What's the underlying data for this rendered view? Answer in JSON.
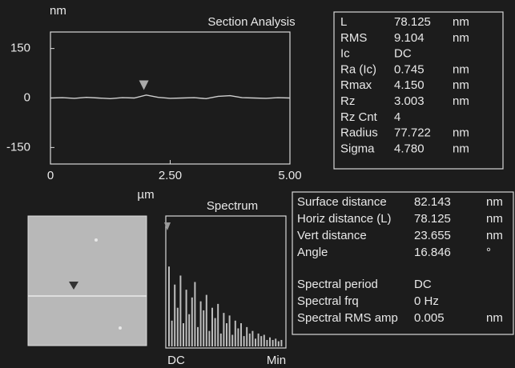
{
  "section": {
    "title": "Section Analysis",
    "y_unit": "nm",
    "x_unit": "µm",
    "xlim": [
      0,
      5
    ],
    "ylim": [
      -200,
      200
    ],
    "xticks": [
      0,
      {
        "value": 2.5,
        "label": "2.50"
      },
      {
        "value": 5,
        "label": "5.00"
      }
    ],
    "yticks": [
      150,
      0,
      -150
    ],
    "x": [
      0,
      0.25,
      0.5,
      0.75,
      1,
      1.25,
      1.5,
      1.75,
      2,
      2.25,
      2.5,
      2.75,
      3,
      3.25,
      3.5,
      3.75,
      4,
      4.25,
      4.5,
      4.75,
      5
    ],
    "y": [
      0,
      1,
      -1,
      2,
      0,
      -2,
      1,
      0,
      9,
      2,
      -1,
      0,
      1,
      -2,
      5,
      7,
      1,
      0,
      -1,
      1,
      0
    ],
    "color": "#d0d0d0"
  },
  "stats": {
    "rows": [
      [
        "L",
        "78.125",
        "nm"
      ],
      [
        "RMS",
        "9.104",
        "nm"
      ],
      [
        "Ic",
        "DC"
      ],
      [
        "Ra (Ic)",
        "0.745",
        "nm"
      ],
      [
        "Rmax",
        "4.150",
        "nm"
      ],
      [
        "Rz",
        "3.003",
        "nm"
      ],
      [
        "Rz Cnt",
        "4"
      ],
      [
        "Radius",
        "77.722",
        "nm"
      ],
      [
        "Sigma",
        "4.780",
        "nm"
      ]
    ]
  },
  "spectrum": {
    "title": "Spectrum",
    "x_labels": [
      "DC",
      "Min"
    ],
    "ylim": [
      0,
      100
    ],
    "color": "#bdbdbd",
    "values": [
      62,
      20,
      48,
      30,
      55,
      18,
      44,
      25,
      38,
      50,
      15,
      35,
      28,
      40,
      12,
      30,
      22,
      33,
      10,
      26,
      18,
      24,
      9,
      20,
      14,
      18,
      8,
      15,
      10,
      12,
      6,
      10,
      8,
      9,
      5,
      7,
      5,
      6,
      4,
      5
    ]
  },
  "measurements": {
    "rows": [
      [
        "Surface distance",
        "82.143",
        "nm"
      ],
      [
        "Horiz distance (L)",
        "78.125",
        "nm"
      ],
      [
        "Vert distance",
        "23.655",
        "nm"
      ],
      [
        "Angle",
        "16.846",
        "°"
      ]
    ],
    "spectral_rows": [
      [
        "Spectral period",
        "DC"
      ],
      [
        "Spectral frq",
        "0 Hz"
      ],
      [
        "Spectral RMS amp",
        "0.005",
        "nm"
      ]
    ]
  }
}
